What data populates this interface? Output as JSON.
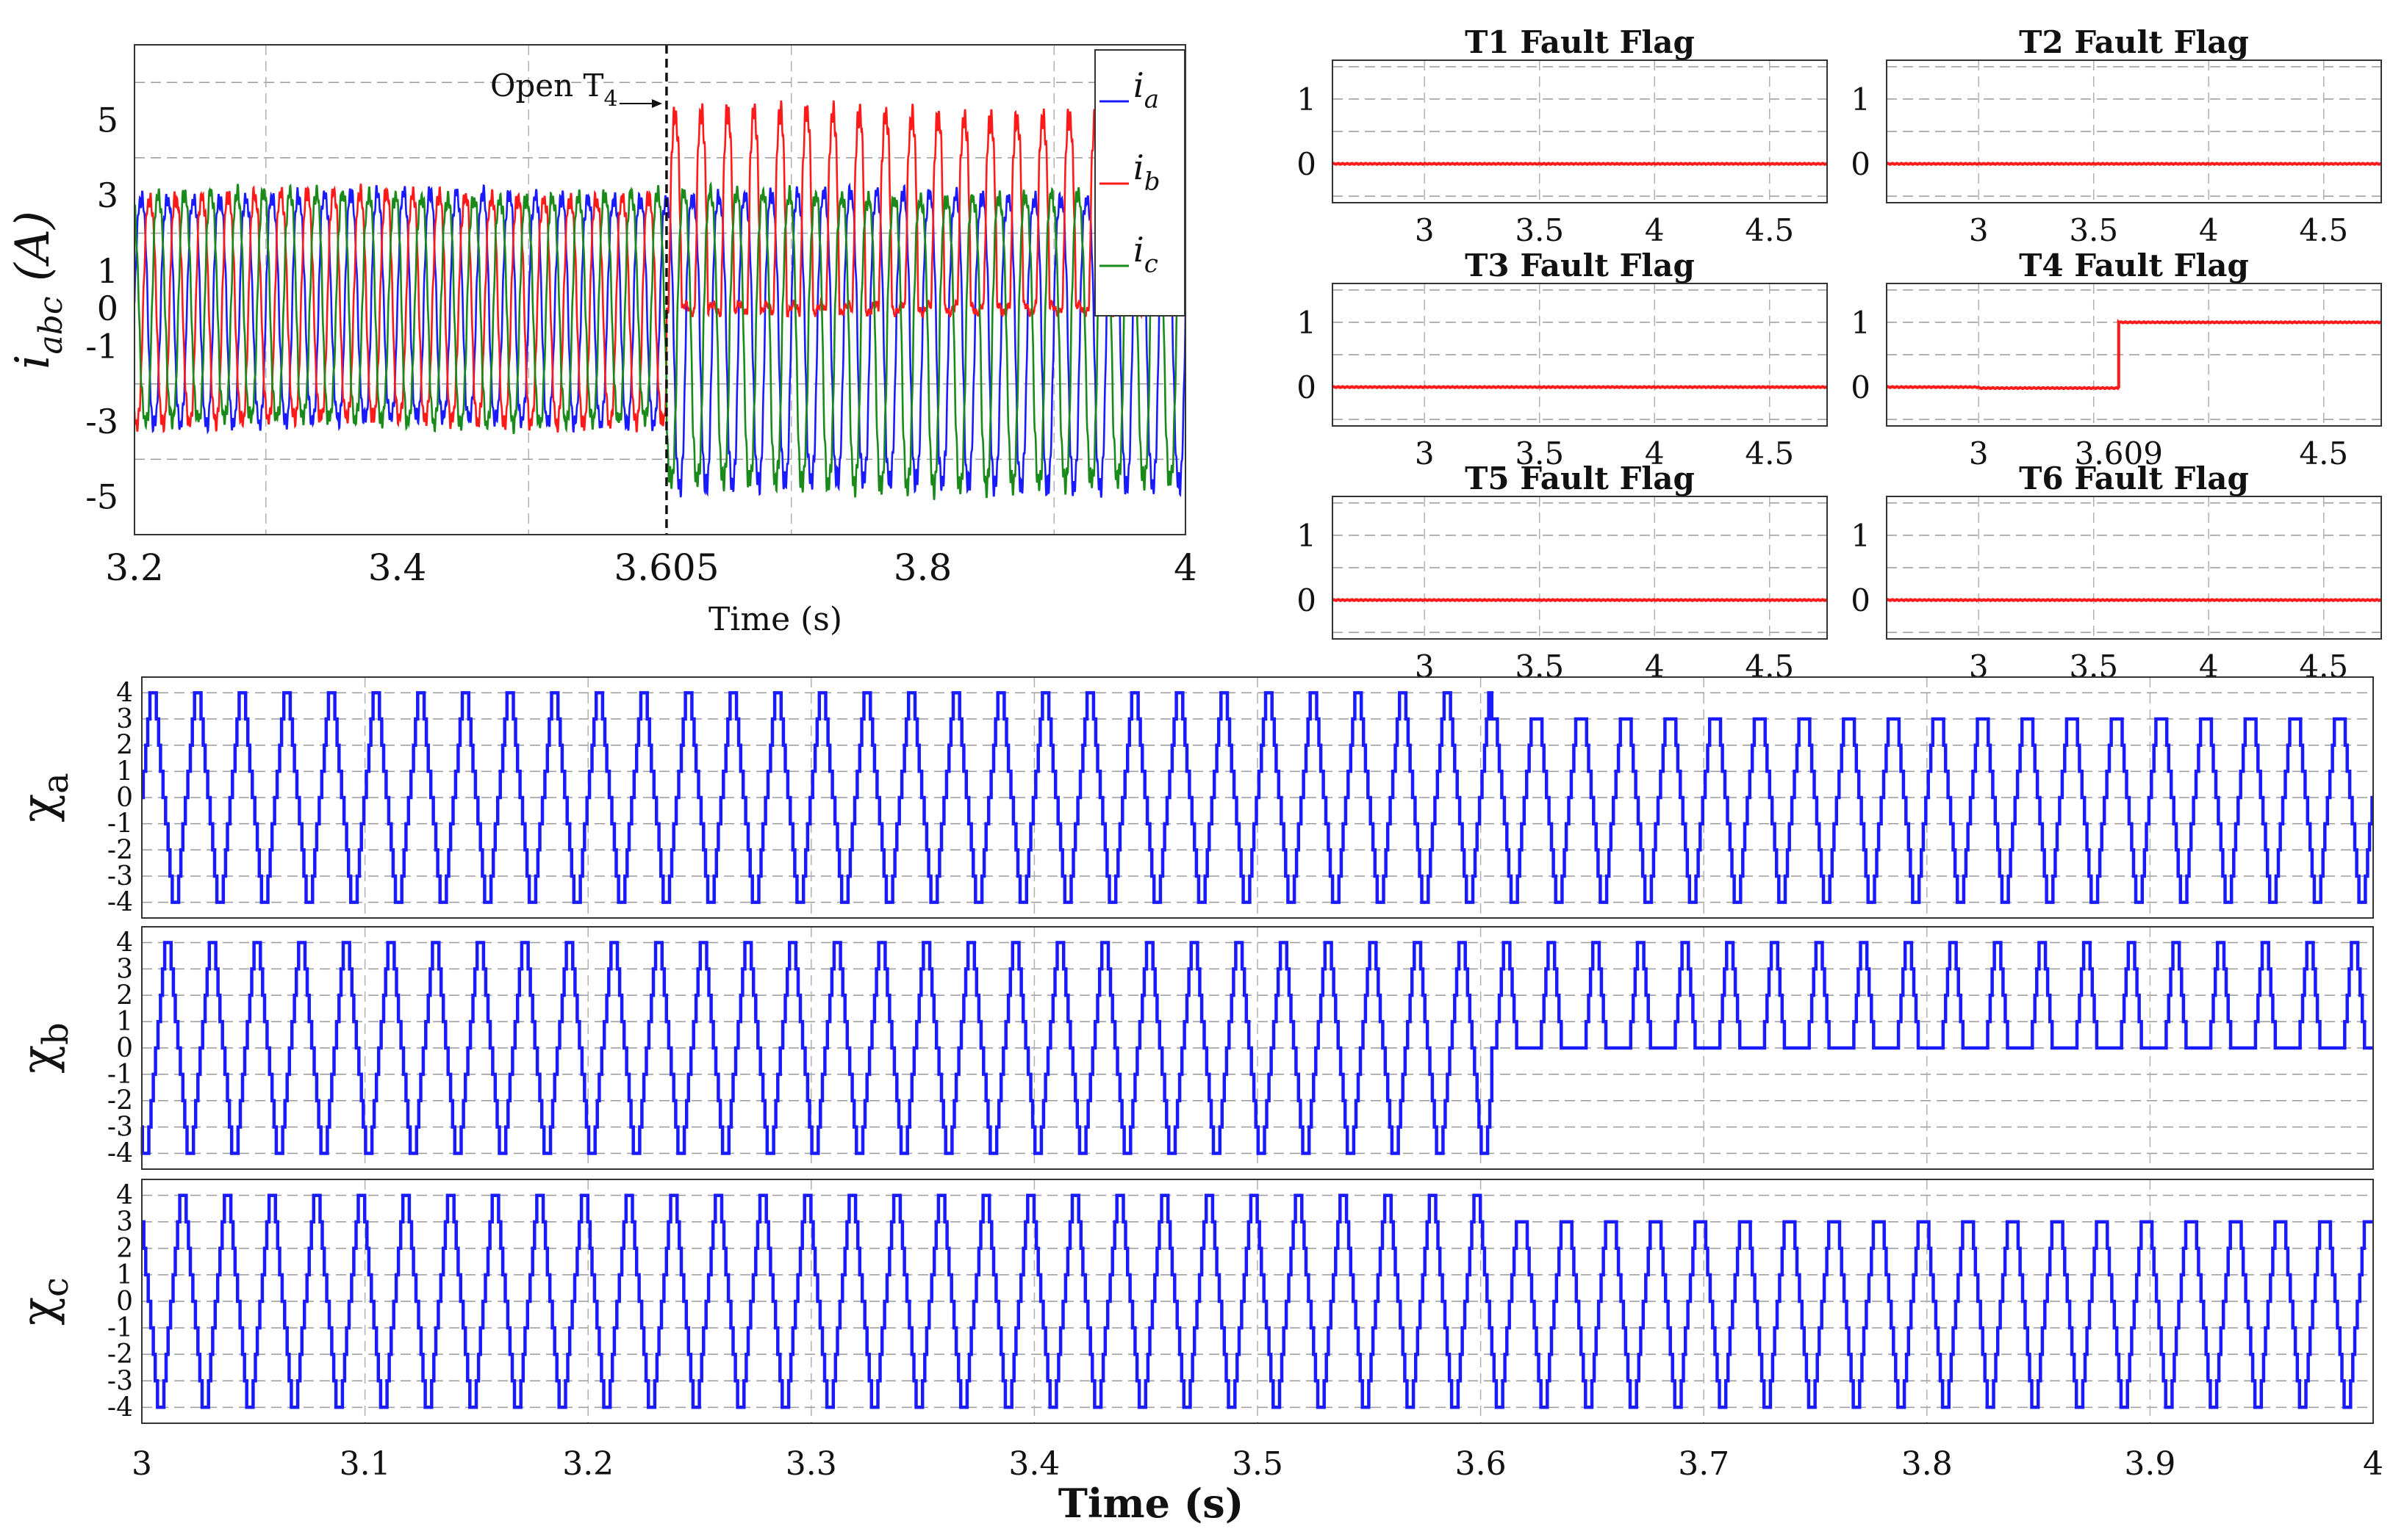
{
  "colors": {
    "ia": "#1a1aff",
    "ib": "#ff1a1a",
    "ic": "#1a8a1a",
    "flag": "#ff1a1a",
    "chi": "#1a1aff"
  },
  "chart_data": [
    {
      "id": "currents",
      "type": "line",
      "xlabel": "Time (s)",
      "ylabel": {
        "main": "i",
        "sub": "abc",
        "unit": " (A)"
      },
      "xlim": [
        3.2,
        4.0
      ],
      "ylim": [
        -6,
        7
      ],
      "xticks": [
        3.2,
        3.4,
        3.605,
        3.8,
        4.0
      ],
      "xtick_labels": [
        "3.2",
        "3.4",
        "3.605",
        "3.8",
        "4"
      ],
      "yticks": [
        5,
        3,
        1,
        0,
        -1,
        -3,
        -5
      ],
      "ytick_labels": [
        "5",
        "3",
        "1",
        "0",
        "-1",
        "-3",
        "-5"
      ],
      "fault_time": 3.605,
      "annotation": {
        "text": "Open T",
        "sub": "4"
      },
      "legend_position": "top-right",
      "frequency_hz": 50,
      "series": [
        {
          "name": "i",
          "sub": "a",
          "color_key": "ia",
          "amplitude_before": 3.2,
          "amplitude_after_pos": 3.2,
          "amplitude_after_neg": 5.0
        },
        {
          "name": "i",
          "sub": "b",
          "color_key": "ib",
          "amplitude_before": 3.2,
          "amplitude_after_pos": 5.5,
          "amplitude_after_neg": 0.0
        },
        {
          "name": "i",
          "sub": "c",
          "color_key": "ic",
          "amplitude_before": 3.2,
          "amplitude_after_pos": 3.2,
          "amplitude_after_neg": 5.0
        }
      ]
    },
    {
      "id": "fault-flags",
      "type": "line",
      "panels": [
        {
          "title": "T1 Fault Flag",
          "xticks": [
            3,
            3.5,
            4,
            4.5
          ],
          "xtick_labels": [
            "3",
            "3.5",
            "4",
            "4.5"
          ],
          "step_time": null
        },
        {
          "title": "T2 Fault Flag",
          "xticks": [
            3,
            3.5,
            4,
            4.5
          ],
          "xtick_labels": [
            "3",
            "3.5",
            "4",
            "4.5"
          ],
          "step_time": null
        },
        {
          "title": "T3 Fault Flag",
          "xticks": [
            3,
            3.5,
            4,
            4.5
          ],
          "xtick_labels": [
            "3",
            "3.5",
            "4",
            "4.5"
          ],
          "step_time": null
        },
        {
          "title": "T4 Fault Flag",
          "xticks": [
            3,
            3.609,
            4.5
          ],
          "xtick_labels": [
            "3",
            "3.609",
            "4.5"
          ],
          "step_time": 3.609
        },
        {
          "title": "T5 Fault Flag",
          "xticks": [
            3,
            3.5,
            4,
            4.5
          ],
          "xtick_labels": [
            "3",
            "3.5",
            "4",
            "4.5"
          ],
          "step_time": null
        },
        {
          "title": "T6 Fault Flag",
          "xticks": [
            3,
            3.5,
            4,
            4.5
          ],
          "xtick_labels": [
            "3",
            "3.5",
            "4",
            "4.5"
          ],
          "step_time": null
        }
      ],
      "xlim": [
        2.6,
        4.75
      ],
      "ylim": [
        -0.6,
        1.6
      ],
      "yticks": [
        1,
        0
      ],
      "ytick_labels": [
        "1",
        "0"
      ]
    },
    {
      "id": "chi",
      "type": "line",
      "xlabel": "Time (s)",
      "xlim": [
        3.0,
        4.0
      ],
      "ylim": [
        -4.6,
        4.6
      ],
      "xticks": [
        3,
        3.1,
        3.2,
        3.3,
        3.4,
        3.5,
        3.6,
        3.7,
        3.8,
        3.9,
        4
      ],
      "xtick_labels": [
        "3",
        "3.1",
        "3.2",
        "3.3",
        "3.4",
        "3.5",
        "3.6",
        "3.7",
        "3.8",
        "3.9",
        "4"
      ],
      "yticks": [
        4,
        3,
        2,
        1,
        0,
        -1,
        -2,
        -3,
        -4
      ],
      "ytick_labels": [
        "4",
        "3",
        "2",
        "1",
        "0",
        "-1",
        "-2",
        "-3",
        "-4"
      ],
      "fault_time": 3.605,
      "series": [
        {
          "name": "χ",
          "sub": "a",
          "phase_deg": 0,
          "after_max": 3,
          "after_min": -4
        },
        {
          "name": "χ",
          "sub": "b",
          "phase_deg": -120,
          "after_max": 4,
          "after_min": 0
        },
        {
          "name": "χ",
          "sub": "c",
          "phase_deg": 120,
          "after_max": 3,
          "after_min": -4
        }
      ]
    }
  ]
}
